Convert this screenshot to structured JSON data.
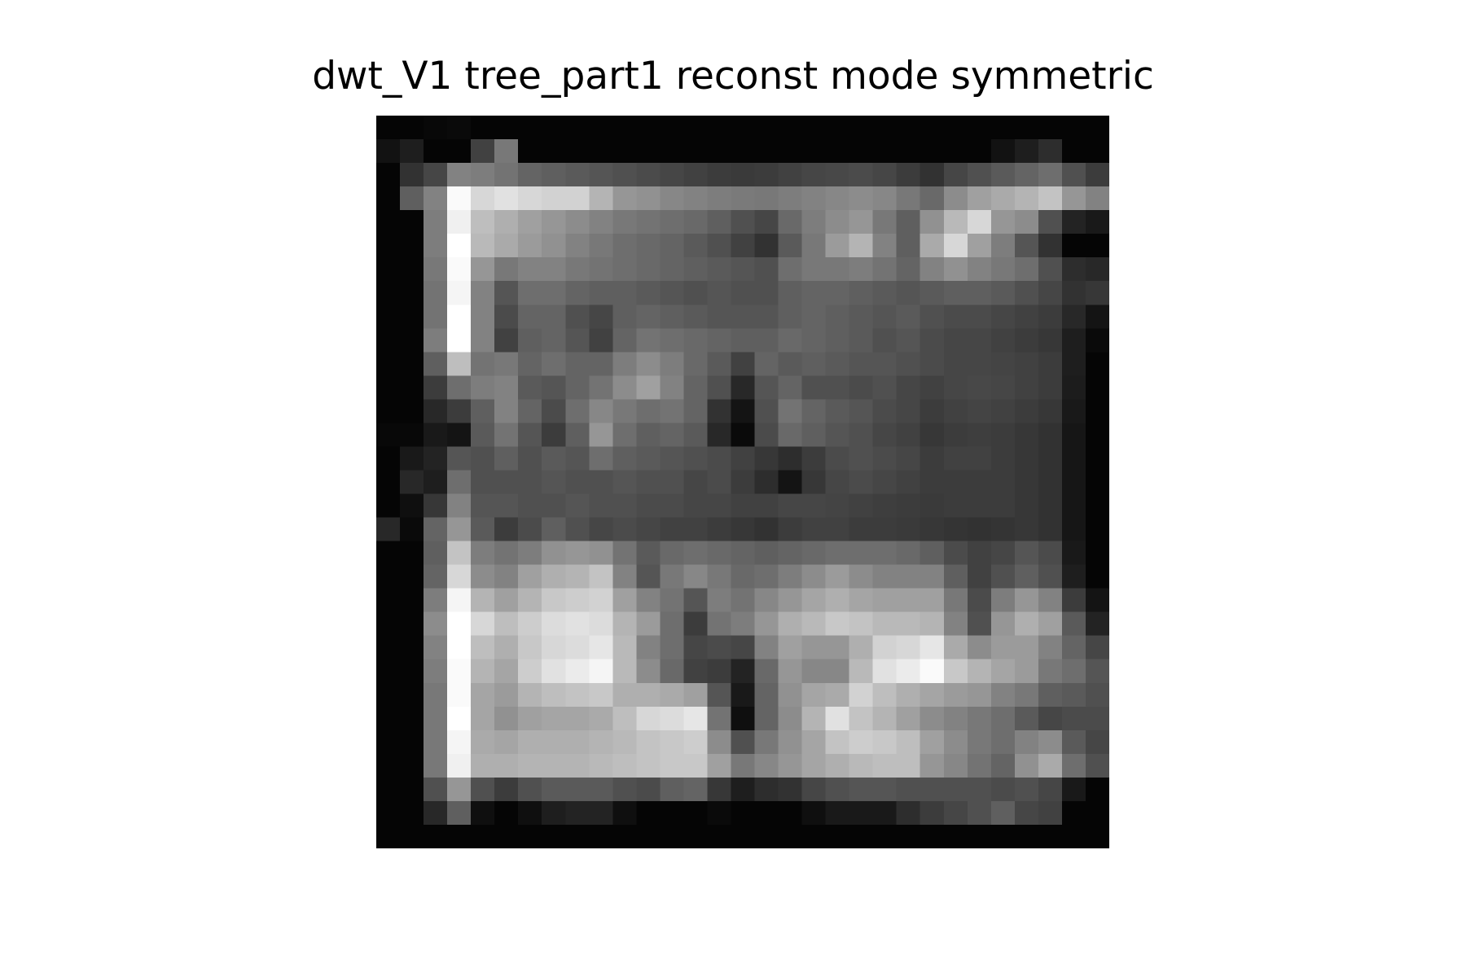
{
  "chart_data": {
    "type": "heatmap",
    "title": "dwt_V1 tree_part1 reconst mode symmetric",
    "colormap": "gray",
    "value_range": [
      0,
      255
    ],
    "grid": false,
    "rows": 31,
    "cols": 31,
    "values": [
      [
        5,
        5,
        8,
        10,
        5,
        5,
        5,
        5,
        5,
        5,
        5,
        5,
        5,
        5,
        5,
        5,
        5,
        5,
        5,
        5,
        5,
        5,
        5,
        5,
        5,
        5,
        5,
        5,
        5,
        5,
        5
      ],
      [
        18,
        30,
        5,
        5,
        65,
        120,
        5,
        5,
        5,
        5,
        5,
        5,
        5,
        5,
        5,
        5,
        5,
        5,
        5,
        5,
        5,
        5,
        5,
        5,
        5,
        5,
        18,
        30,
        45,
        5,
        5
      ],
      [
        5,
        50,
        70,
        130,
        125,
        115,
        100,
        95,
        90,
        85,
        80,
        75,
        70,
        65,
        60,
        58,
        60,
        65,
        70,
        72,
        75,
        70,
        60,
        50,
        70,
        80,
        90,
        100,
        110,
        80,
        60
      ],
      [
        5,
        95,
        130,
        250,
        215,
        225,
        215,
        210,
        210,
        180,
        150,
        145,
        135,
        130,
        125,
        122,
        120,
        125,
        130,
        135,
        140,
        135,
        120,
        105,
        140,
        160,
        170,
        180,
        195,
        150,
        130
      ],
      [
        5,
        5,
        125,
        240,
        190,
        175,
        160,
        150,
        140,
        130,
        120,
        115,
        110,
        105,
        95,
        80,
        70,
        105,
        125,
        140,
        150,
        120,
        95,
        145,
        185,
        215,
        150,
        140,
        80,
        35,
        25
      ],
      [
        5,
        5,
        125,
        255,
        185,
        170,
        155,
        145,
        130,
        120,
        110,
        105,
        100,
        90,
        80,
        65,
        50,
        90,
        120,
        155,
        180,
        130,
        95,
        170,
        215,
        160,
        125,
        85,
        50,
        5,
        5
      ],
      [
        5,
        5,
        120,
        250,
        150,
        120,
        130,
        130,
        120,
        115,
        110,
        105,
        100,
        95,
        90,
        85,
        80,
        110,
        120,
        120,
        125,
        115,
        100,
        130,
        145,
        130,
        120,
        110,
        80,
        45,
        40
      ],
      [
        5,
        5,
        115,
        245,
        130,
        85,
        110,
        110,
        100,
        95,
        95,
        90,
        85,
        80,
        85,
        80,
        80,
        95,
        100,
        100,
        95,
        90,
        85,
        90,
        95,
        95,
        90,
        80,
        70,
        50,
        55
      ],
      [
        5,
        5,
        115,
        255,
        130,
        75,
        100,
        100,
        80,
        70,
        95,
        100,
        95,
        90,
        85,
        85,
        85,
        95,
        100,
        95,
        90,
        85,
        90,
        80,
        75,
        75,
        70,
        65,
        60,
        40,
        20
      ],
      [
        5,
        5,
        125,
        255,
        130,
        65,
        95,
        100,
        85,
        65,
        100,
        115,
        110,
        105,
        100,
        95,
        95,
        105,
        100,
        95,
        90,
        80,
        85,
        75,
        70,
        70,
        65,
        60,
        55,
        30,
        10
      ],
      [
        5,
        5,
        95,
        190,
        115,
        120,
        100,
        110,
        100,
        100,
        125,
        140,
        125,
        105,
        90,
        65,
        100,
        90,
        95,
        90,
        85,
        85,
        80,
        75,
        70,
        70,
        68,
        65,
        60,
        30,
        5
      ],
      [
        5,
        5,
        60,
        110,
        125,
        130,
        90,
        85,
        100,
        115,
        140,
        160,
        130,
        100,
        80,
        40,
        85,
        100,
        80,
        80,
        75,
        80,
        70,
        65,
        70,
        72,
        70,
        65,
        60,
        28,
        5
      ],
      [
        5,
        5,
        40,
        60,
        95,
        130,
        100,
        75,
        110,
        135,
        120,
        110,
        115,
        100,
        50,
        20,
        80,
        115,
        100,
        90,
        85,
        75,
        70,
        60,
        65,
        68,
        65,
        60,
        55,
        25,
        5
      ],
      [
        8,
        8,
        25,
        20,
        90,
        115,
        85,
        60,
        95,
        150,
        110,
        95,
        100,
        90,
        40,
        10,
        75,
        105,
        95,
        85,
        80,
        70,
        65,
        55,
        60,
        62,
        60,
        55,
        50,
        22,
        5
      ],
      [
        5,
        25,
        35,
        85,
        80,
        95,
        80,
        90,
        85,
        110,
        95,
        90,
        85,
        80,
        75,
        65,
        55,
        45,
        60,
        75,
        80,
        75,
        70,
        60,
        65,
        65,
        60,
        55,
        50,
        22,
        5
      ],
      [
        5,
        40,
        30,
        110,
        80,
        80,
        80,
        85,
        80,
        80,
        85,
        80,
        80,
        70,
        75,
        60,
        45,
        20,
        55,
        70,
        75,
        70,
        65,
        60,
        60,
        60,
        60,
        55,
        50,
        22,
        5
      ],
      [
        5,
        15,
        55,
        130,
        85,
        85,
        80,
        80,
        85,
        80,
        80,
        75,
        75,
        70,
        70,
        65,
        65,
        70,
        70,
        68,
        65,
        62,
        60,
        58,
        60,
        60,
        60,
        55,
        50,
        22,
        5
      ],
      [
        40,
        10,
        100,
        150,
        90,
        60,
        75,
        95,
        80,
        70,
        75,
        70,
        65,
        65,
        60,
        55,
        50,
        60,
        65,
        65,
        60,
        60,
        58,
        55,
        52,
        50,
        52,
        55,
        50,
        22,
        5
      ],
      [
        5,
        5,
        95,
        195,
        125,
        115,
        125,
        145,
        150,
        145,
        115,
        90,
        105,
        110,
        105,
        100,
        95,
        100,
        105,
        110,
        110,
        110,
        105,
        95,
        75,
        65,
        70,
        85,
        75,
        25,
        5
      ],
      [
        5,
        5,
        100,
        215,
        140,
        130,
        160,
        175,
        180,
        195,
        130,
        85,
        120,
        135,
        120,
        105,
        110,
        125,
        140,
        155,
        140,
        130,
        130,
        130,
        95,
        65,
        80,
        95,
        80,
        30,
        5
      ],
      [
        5,
        5,
        125,
        245,
        180,
        160,
        180,
        200,
        205,
        210,
        160,
        130,
        115,
        85,
        125,
        115,
        135,
        150,
        165,
        175,
        165,
        160,
        160,
        160,
        120,
        75,
        125,
        150,
        130,
        60,
        20
      ],
      [
        5,
        5,
        140,
        255,
        215,
        190,
        205,
        220,
        225,
        220,
        180,
        155,
        110,
        60,
        115,
        125,
        150,
        175,
        185,
        200,
        195,
        185,
        185,
        180,
        130,
        80,
        150,
        175,
        160,
        90,
        35
      ],
      [
        5,
        5,
        130,
        255,
        190,
        175,
        200,
        215,
        220,
        230,
        185,
        130,
        110,
        70,
        75,
        70,
        130,
        160,
        150,
        150,
        175,
        210,
        215,
        230,
        170,
        140,
        155,
        155,
        130,
        100,
        70
      ],
      [
        5,
        5,
        125,
        250,
        180,
        165,
        205,
        225,
        235,
        245,
        185,
        140,
        105,
        65,
        60,
        35,
        105,
        150,
        135,
        135,
        185,
        225,
        235,
        250,
        200,
        180,
        165,
        155,
        120,
        110,
        85
      ],
      [
        5,
        5,
        120,
        250,
        165,
        155,
        180,
        190,
        195,
        200,
        175,
        175,
        170,
        160,
        85,
        25,
        100,
        145,
        165,
        170,
        210,
        190,
        175,
        165,
        155,
        150,
        130,
        120,
        95,
        90,
        80
      ],
      [
        5,
        5,
        120,
        255,
        165,
        145,
        160,
        165,
        165,
        170,
        190,
        215,
        220,
        230,
        115,
        15,
        100,
        140,
        180,
        225,
        195,
        180,
        160,
        140,
        130,
        120,
        110,
        90,
        70,
        75,
        75
      ],
      [
        5,
        5,
        120,
        245,
        170,
        165,
        175,
        175,
        175,
        180,
        185,
        195,
        200,
        205,
        140,
        80,
        120,
        145,
        165,
        195,
        205,
        200,
        190,
        160,
        140,
        120,
        110,
        130,
        140,
        90,
        70
      ],
      [
        5,
        5,
        120,
        240,
        175,
        175,
        180,
        180,
        180,
        185,
        190,
        195,
        200,
        200,
        160,
        120,
        135,
        150,
        165,
        175,
        185,
        190,
        190,
        150,
        135,
        115,
        100,
        145,
        170,
        110,
        80
      ],
      [
        5,
        5,
        80,
        150,
        80,
        60,
        80,
        90,
        90,
        90,
        80,
        75,
        95,
        100,
        55,
        30,
        45,
        50,
        70,
        80,
        85,
        85,
        80,
        80,
        80,
        80,
        75,
        80,
        70,
        25,
        5
      ],
      [
        5,
        5,
        40,
        95,
        15,
        5,
        15,
        30,
        35,
        35,
        15,
        5,
        5,
        5,
        10,
        5,
        5,
        5,
        15,
        25,
        25,
        25,
        45,
        60,
        70,
        80,
        95,
        70,
        65,
        5,
        5
      ],
      [
        5,
        5,
        5,
        5,
        5,
        5,
        5,
        5,
        5,
        5,
        5,
        5,
        5,
        5,
        5,
        5,
        5,
        5,
        5,
        5,
        5,
        5,
        5,
        5,
        5,
        5,
        5,
        5,
        5,
        5,
        5
      ]
    ]
  }
}
